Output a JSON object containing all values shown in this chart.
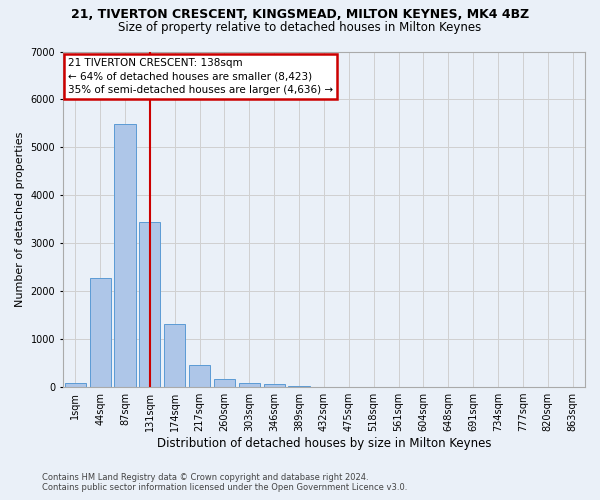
{
  "title": "21, TIVERTON CRESCENT, KINGSMEAD, MILTON KEYNES, MK4 4BZ",
  "subtitle": "Size of property relative to detached houses in Milton Keynes",
  "xlabel": "Distribution of detached houses by size in Milton Keynes",
  "ylabel": "Number of detached properties",
  "footer_line1": "Contains HM Land Registry data © Crown copyright and database right 2024.",
  "footer_line2": "Contains public sector information licensed under the Open Government Licence v3.0.",
  "bar_labels": [
    "1sqm",
    "44sqm",
    "87sqm",
    "131sqm",
    "174sqm",
    "217sqm",
    "260sqm",
    "303sqm",
    "346sqm",
    "389sqm",
    "432sqm",
    "475sqm",
    "518sqm",
    "561sqm",
    "604sqm",
    "648sqm",
    "691sqm",
    "734sqm",
    "777sqm",
    "820sqm",
    "863sqm"
  ],
  "bar_values": [
    80,
    2280,
    5480,
    3450,
    1320,
    470,
    165,
    95,
    60,
    30,
    0,
    0,
    0,
    0,
    0,
    0,
    0,
    0,
    0,
    0,
    0
  ],
  "bar_color": "#aec6e8",
  "bar_edge_color": "#5b9bd5",
  "grid_color": "#d0d0d0",
  "bg_color": "#eaf0f8",
  "annotation_text": "21 TIVERTON CRESCENT: 138sqm\n← 64% of detached houses are smaller (8,423)\n35% of semi-detached houses are larger (4,636) →",
  "annotation_box_color": "#ffffff",
  "annotation_box_edge": "#cc0000",
  "vline_color": "#cc0000",
  "vline_pos": 3.0,
  "ylim": [
    0,
    7000
  ],
  "yticks": [
    0,
    1000,
    2000,
    3000,
    4000,
    5000,
    6000,
    7000
  ],
  "title_fontsize": 9,
  "subtitle_fontsize": 8.5,
  "ylabel_fontsize": 8,
  "xlabel_fontsize": 8.5,
  "tick_fontsize": 7,
  "annotation_fontsize": 7.5,
  "footer_fontsize": 6
}
